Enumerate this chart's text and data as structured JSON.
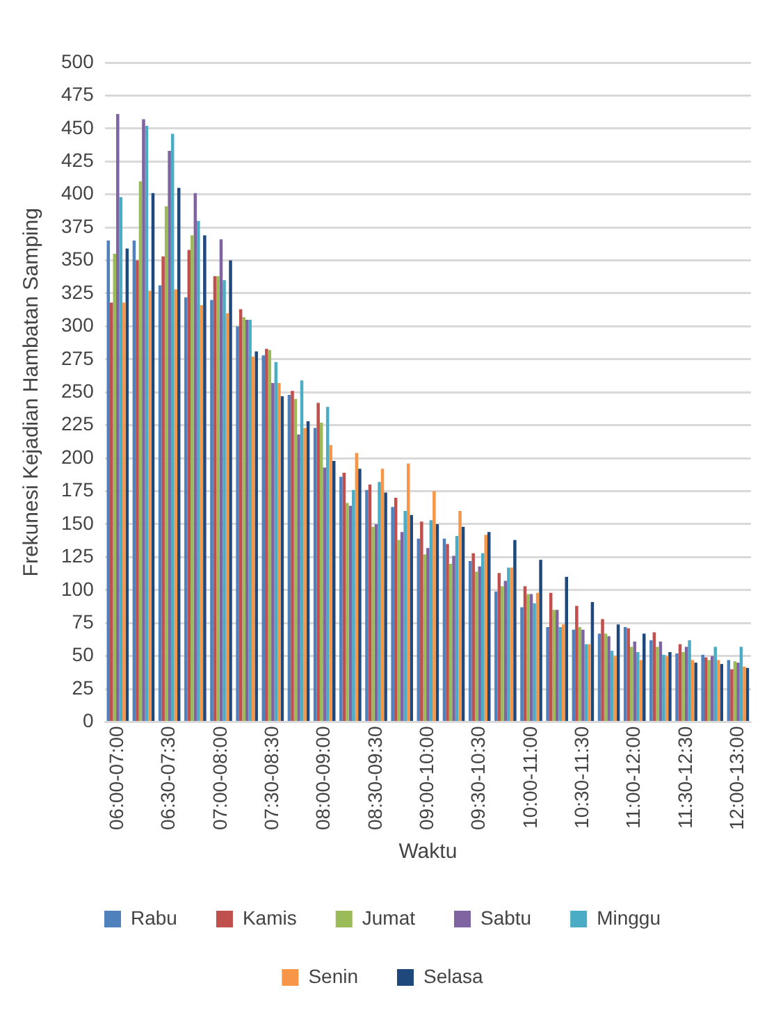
{
  "chart_data": {
    "type": "bar",
    "xlabel": "Waktu",
    "ylabel": "Frekunesi Kejadian Hambatan Samping",
    "categories": [
      "06:00-07:00",
      null,
      "06:30-07:30",
      null,
      "07:00-08:00",
      null,
      "07:30-08:30",
      null,
      "08:00-09:00",
      null,
      "08:30-09:30",
      null,
      "09:00-10:00",
      null,
      "09:30-10:30",
      null,
      "10:00-11:00",
      null,
      "10:30-11:30",
      null,
      "11:00-12:00",
      null,
      "11:30-12:30",
      null,
      "12:00-13:00"
    ],
    "series": [
      {
        "name": "Rabu",
        "color": "#4f81bd",
        "values": [
          365,
          365,
          331,
          322,
          320,
          300,
          278,
          248,
          223,
          186,
          176,
          163,
          139,
          139,
          122,
          99,
          87,
          72,
          70,
          67,
          72,
          62,
          52,
          51,
          47
        ]
      },
      {
        "name": "Kamis",
        "color": "#c0504d",
        "values": [
          318,
          350,
          353,
          358,
          338,
          313,
          283,
          251,
          242,
          189,
          180,
          170,
          152,
          135,
          128,
          113,
          103,
          98,
          88,
          78,
          71,
          68,
          59,
          49,
          40
        ]
      },
      {
        "name": "Jumat",
        "color": "#9bbb59",
        "values": [
          355,
          410,
          391,
          369,
          338,
          307,
          282,
          245,
          227,
          166,
          148,
          138,
          127,
          120,
          114,
          103,
          97,
          85,
          72,
          67,
          57,
          57,
          53,
          47,
          46
        ]
      },
      {
        "name": "Sabtu",
        "color": "#8064a2",
        "values": [
          461,
          457,
          433,
          401,
          366,
          305,
          257,
          218,
          193,
          164,
          150,
          144,
          132,
          126,
          118,
          107,
          97,
          85,
          70,
          65,
          61,
          61,
          57,
          50,
          45
        ]
      },
      {
        "name": "Minggu",
        "color": "#4bacc6",
        "values": [
          398,
          452,
          446,
          380,
          335,
          305,
          273,
          259,
          239,
          176,
          182,
          160,
          153,
          141,
          128,
          117,
          90,
          72,
          59,
          54,
          53,
          51,
          62,
          57,
          57
        ]
      },
      {
        "name": "Senin",
        "color": "#f79646",
        "values": [
          318,
          327,
          328,
          316,
          310,
          277,
          257,
          223,
          210,
          204,
          192,
          196,
          175,
          160,
          142,
          117,
          98,
          74,
          59,
          50,
          47,
          50,
          47,
          47,
          42
        ]
      },
      {
        "name": "Selasa",
        "color": "#1f497d",
        "values": [
          359,
          401,
          405,
          369,
          350,
          281,
          247,
          228,
          198,
          192,
          174,
          157,
          150,
          148,
          144,
          138,
          123,
          110,
          91,
          74,
          67,
          53,
          45,
          44,
          41
        ]
      }
    ],
    "ylim": [
      0,
      500
    ],
    "yticks": [
      0,
      25,
      50,
      75,
      100,
      125,
      150,
      175,
      200,
      225,
      250,
      275,
      300,
      325,
      350,
      375,
      400,
      425,
      450,
      475,
      500
    ],
    "grid": "y",
    "legend": "bottom"
  }
}
